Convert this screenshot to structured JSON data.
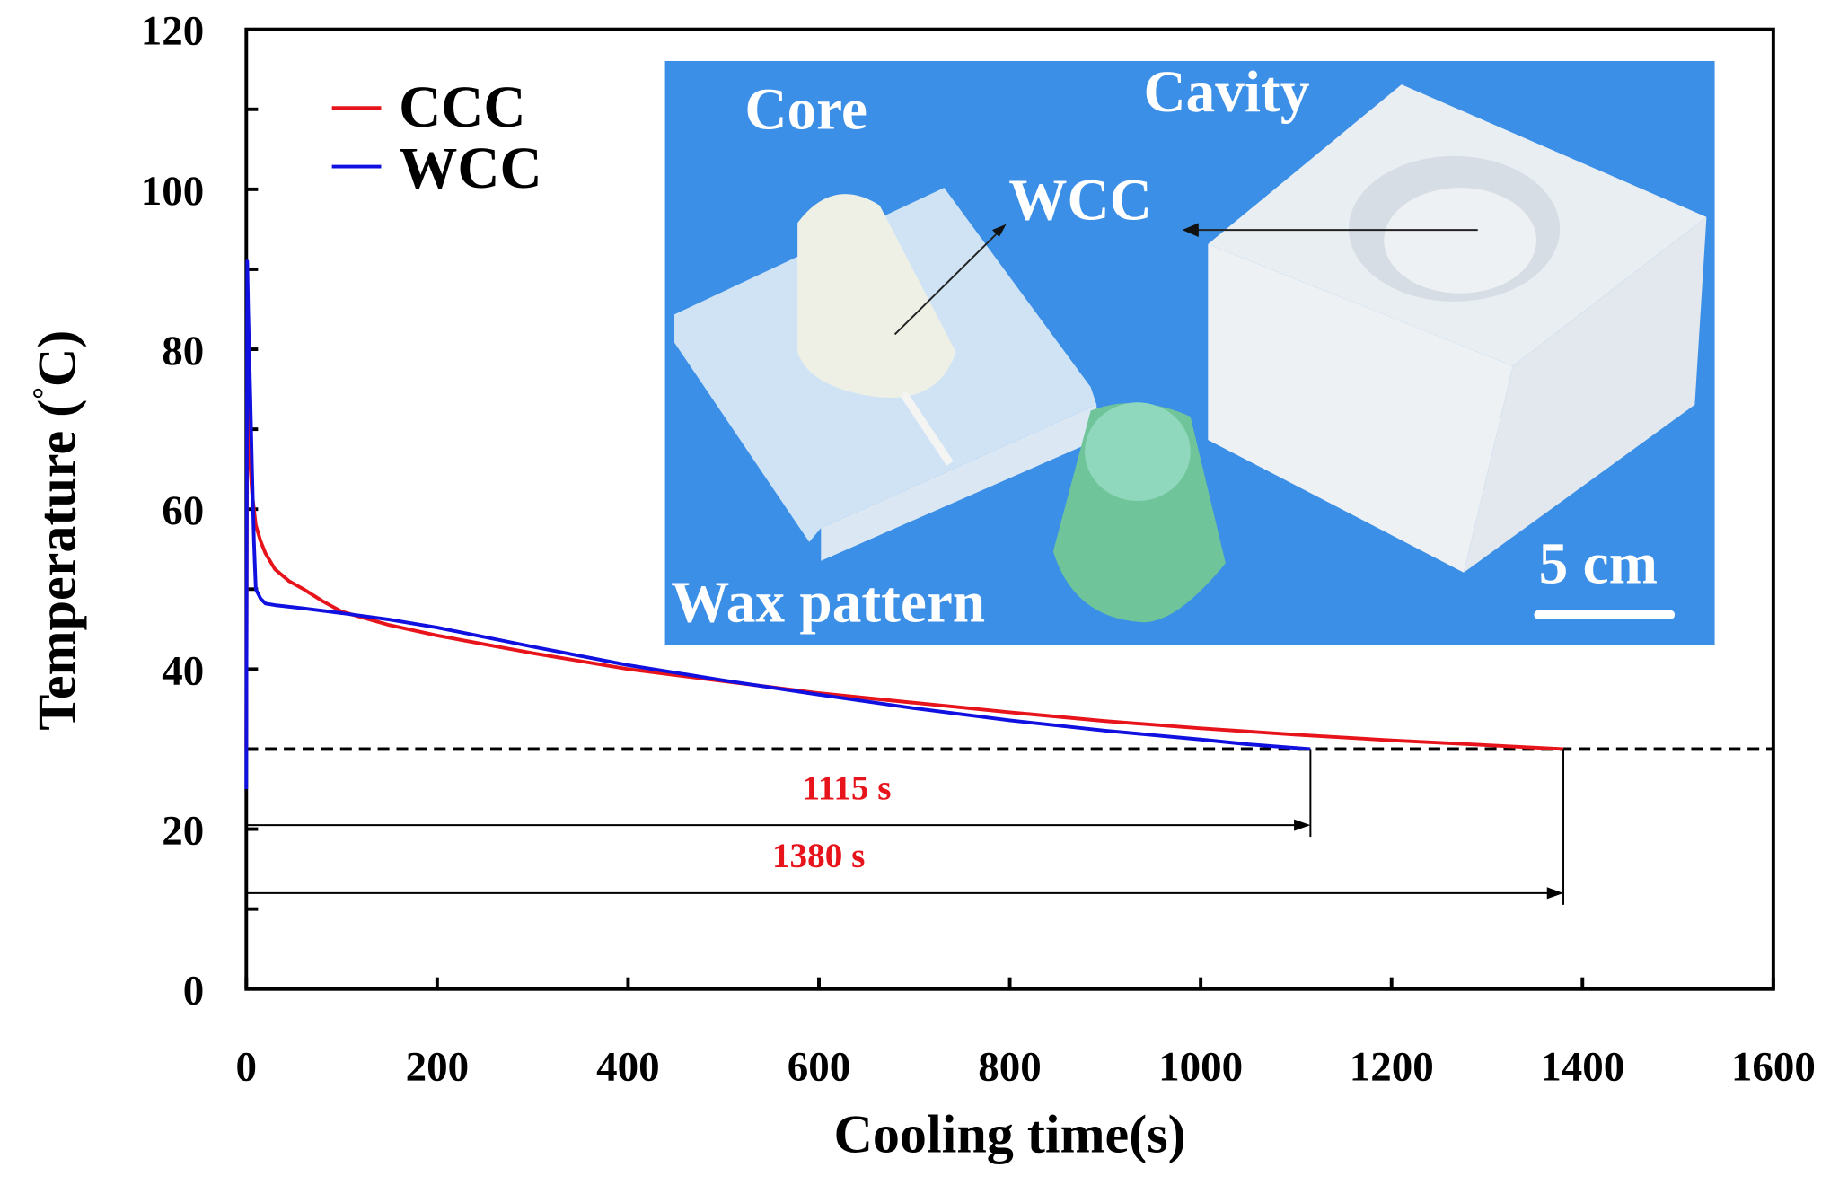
{
  "chart_data": {
    "type": "line",
    "title": "",
    "xlabel": "Cooling time(s)",
    "ylabel": "Temperature (°C)",
    "ylabel_main": "Temperature (",
    "ylabel_degree": "°",
    "ylabel_unit": "C)",
    "xlim": [
      0,
      1600
    ],
    "ylim": [
      0,
      120
    ],
    "xticks": [
      0,
      200,
      400,
      600,
      800,
      1000,
      1200,
      1400,
      1600
    ],
    "yticks": [
      0,
      20,
      40,
      60,
      80,
      100,
      120
    ],
    "grid": false,
    "legend_position": "top-left",
    "threshold_temperature": 30,
    "series": [
      {
        "name": "CCC",
        "color": "#e8141c",
        "x": [
          0,
          1,
          3,
          6,
          10,
          15,
          20,
          30,
          45,
          60,
          80,
          100,
          150,
          200,
          300,
          400,
          500,
          600,
          700,
          800,
          900,
          1000,
          1100,
          1200,
          1300,
          1380
        ],
        "y": [
          30,
          75,
          68,
          62,
          58,
          56,
          54.5,
          52.5,
          51,
          50,
          48.5,
          47.2,
          45.5,
          44.2,
          42,
          40,
          38.5,
          37,
          35.8,
          34.6,
          33.5,
          32.6,
          31.8,
          31.1,
          30.5,
          30
        ]
      },
      {
        "name": "WCC",
        "color": "#1010e0",
        "x": [
          0,
          1,
          2,
          4,
          6,
          8,
          10,
          15,
          20,
          30,
          60,
          100,
          150,
          200,
          300,
          400,
          500,
          600,
          700,
          800,
          900,
          1000,
          1050,
          1115
        ],
        "y": [
          25,
          91,
          85,
          75,
          65,
          56,
          50,
          48.8,
          48.2,
          48,
          47.6,
          47,
          46.2,
          45.2,
          42.8,
          40.5,
          38.6,
          36.8,
          35.1,
          33.6,
          32.3,
          31.2,
          30.6,
          30
        ]
      }
    ],
    "annotations": [
      {
        "text": "1115 s",
        "x_end": 1115,
        "y": 20.5,
        "color": "#e8141c"
      },
      {
        "text": "1380 s",
        "x_end": 1380,
        "y": 12,
        "color": "#e8141c"
      }
    ],
    "inset": {
      "labels": {
        "core": "Core",
        "cavity": "Cavity",
        "wcc": "WCC",
        "wax_pattern": "Wax pattern",
        "scale": "5 cm"
      },
      "background_color": "#3b8fe6",
      "wax_color": "#6fc49a"
    }
  }
}
